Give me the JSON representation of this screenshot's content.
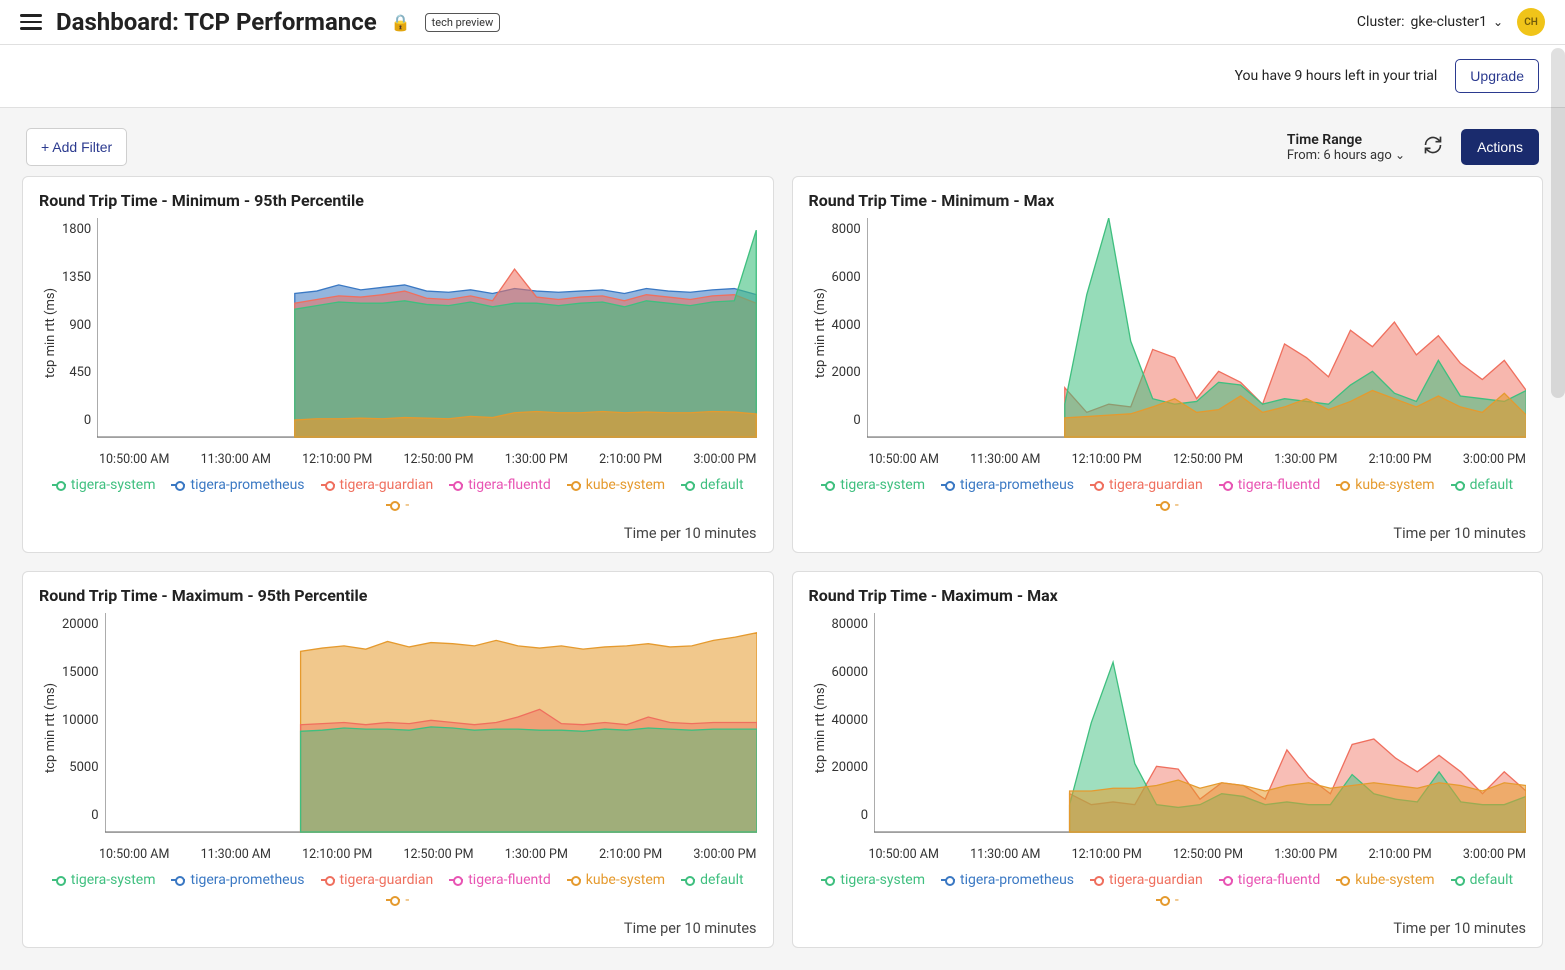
{
  "header": {
    "title": "Dashboard: TCP Performance",
    "tech_preview": "tech preview",
    "cluster_label": "Cluster:",
    "cluster_value": "gke-cluster1",
    "avatar_initials": "CH"
  },
  "trial": {
    "message": "You have 9 hours left in your trial",
    "upgrade_label": "Upgrade"
  },
  "controls": {
    "add_filter_label": "+ Add Filter",
    "time_range_label": "Time Range",
    "time_range_value": "From: 6 hours ago",
    "actions_label": "Actions"
  },
  "series_colors": {
    "tigera-system": "#3fbf7f",
    "tigera-prometheus": "#3a78c3",
    "tigera-guardian": "#ef6f5e",
    "tigera-fluentd": "#e854b3",
    "kube-system": "#e59a2e",
    "default": "#3fbf7f",
    "dash": "#e59a2e"
  },
  "legend_series": [
    {
      "key": "tigera-system",
      "label": "tigera-system"
    },
    {
      "key": "tigera-prometheus",
      "label": "tigera-prometheus"
    },
    {
      "key": "tigera-guardian",
      "label": "tigera-guardian"
    },
    {
      "key": "tigera-fluentd",
      "label": "tigera-fluentd"
    },
    {
      "key": "kube-system",
      "label": "kube-system"
    },
    {
      "key": "default",
      "label": "default"
    },
    {
      "key": "dash",
      "label": "-"
    }
  ],
  "x_ticks": [
    "10:50:00 AM",
    "11:30:00 AM",
    "12:10:00 PM",
    "12:50:00 PM",
    "1:30:00 PM",
    "2:10:00 PM",
    "3:00:00 PM"
  ],
  "panels": [
    {
      "id": "chart1",
      "title": "Round Trip Time - Minimum - 95th Percentile",
      "ylabel": "tcp min rtt (ms)",
      "footer": "Time per 10 minutes",
      "ylim": [
        0,
        1800
      ],
      "yticks": [
        0,
        450,
        900,
        1350,
        1800
      ],
      "type": "area",
      "x_range": [
        0,
        30
      ],
      "data_start_x": 9,
      "series": [
        {
          "key": "tigera-prometheus",
          "fill_opacity": 0.55,
          "values": [
            1180,
            1200,
            1250,
            1210,
            1230,
            1250,
            1200,
            1190,
            1210,
            1180,
            1220,
            1200,
            1190,
            1200,
            1210,
            1180,
            1220,
            1200,
            1190,
            1210,
            1220,
            1170
          ]
        },
        {
          "key": "tigera-guardian",
          "fill_opacity": 0.55,
          "values": [
            1100,
            1130,
            1160,
            1150,
            1170,
            1200,
            1140,
            1130,
            1160,
            1120,
            1380,
            1150,
            1130,
            1150,
            1160,
            1120,
            1170,
            1150,
            1130,
            1160,
            1170,
            1100
          ]
        },
        {
          "key": "tigera-system",
          "fill_opacity": 0.6,
          "values": [
            1050,
            1080,
            1110,
            1100,
            1100,
            1120,
            1090,
            1080,
            1110,
            1070,
            1100,
            1100,
            1080,
            1100,
            1110,
            1070,
            1120,
            1100,
            1080,
            1110,
            1120,
            1700
          ]
        },
        {
          "key": "kube-system",
          "fill_opacity": 0.65,
          "values": [
            140,
            150,
            150,
            155,
            150,
            160,
            155,
            150,
            170,
            160,
            200,
            210,
            200,
            200,
            210,
            200,
            205,
            200,
            200,
            210,
            205,
            190
          ]
        }
      ]
    },
    {
      "id": "chart2",
      "title": "Round Trip Time - Minimum - Max",
      "ylabel": "tcp min rtt (ms)",
      "footer": "Time per 10 minutes",
      "ylim": [
        0,
        8000
      ],
      "yticks": [
        0,
        2000,
        4000,
        6000,
        8000
      ],
      "type": "area",
      "x_range": [
        0,
        30
      ],
      "data_start_x": 9,
      "series": [
        {
          "key": "tigera-guardian",
          "fill_opacity": 0.5,
          "values": [
            1800,
            900,
            1200,
            1100,
            3200,
            2900,
            1400,
            2400,
            2000,
            1200,
            3400,
            2900,
            2200,
            3900,
            3300,
            4200,
            3000,
            3700,
            2700,
            2100,
            2800,
            1700
          ]
        },
        {
          "key": "tigera-system",
          "fill_opacity": 0.55,
          "values": [
            1200,
            5200,
            8000,
            3500,
            1400,
            1200,
            1300,
            2000,
            1900,
            1200,
            1400,
            1300,
            1200,
            1900,
            2400,
            1600,
            1300,
            2800,
            1500,
            1400,
            1300,
            1700
          ]
        },
        {
          "key": "kube-system",
          "fill_opacity": 0.6,
          "values": [
            700,
            750,
            800,
            850,
            1100,
            1400,
            900,
            1000,
            1500,
            900,
            1100,
            1400,
            1000,
            1300,
            1700,
            1400,
            1100,
            1500,
            1100,
            900,
            1600,
            800
          ]
        }
      ]
    },
    {
      "id": "chart3",
      "title": "Round Trip Time - Maximum - 95th Percentile",
      "ylabel": "tcp min rtt (ms)",
      "footer": "Time per 10 minutes",
      "ylim": [
        0,
        20000
      ],
      "yticks": [
        0,
        5000,
        10000,
        15000,
        20000
      ],
      "type": "area",
      "x_range": [
        0,
        30
      ],
      "data_start_x": 9,
      "series": [
        {
          "key": "kube-system",
          "fill_opacity": 0.55,
          "values": [
            16500,
            16800,
            17000,
            16700,
            17400,
            16900,
            17300,
            17200,
            17000,
            17500,
            17000,
            16800,
            17000,
            16700,
            16900,
            17000,
            17200,
            16900,
            17000,
            17500,
            17800,
            18200
          ]
        },
        {
          "key": "tigera-guardian",
          "fill_opacity": 0.45,
          "values": [
            9800,
            9900,
            10000,
            9800,
            10000,
            9900,
            10200,
            10000,
            9800,
            10000,
            10500,
            11200,
            9900,
            9800,
            10000,
            9800,
            10500,
            10000,
            9900,
            10000,
            10000,
            10000
          ]
        },
        {
          "key": "tigera-system",
          "fill_opacity": 0.45,
          "values": [
            9200,
            9300,
            9500,
            9400,
            9400,
            9300,
            9600,
            9500,
            9300,
            9400,
            9400,
            9300,
            9300,
            9200,
            9400,
            9300,
            9500,
            9400,
            9300,
            9400,
            9400,
            9400
          ]
        }
      ]
    },
    {
      "id": "chart4",
      "title": "Round Trip Time - Maximum - Max",
      "ylabel": "tcp min rtt (ms)",
      "footer": "Time per 10 minutes",
      "ylim": [
        0,
        80000
      ],
      "yticks": [
        0,
        20000,
        40000,
        60000,
        80000
      ],
      "type": "area",
      "x_range": [
        0,
        30
      ],
      "data_start_x": 9,
      "series": [
        {
          "key": "tigera-guardian",
          "fill_opacity": 0.45,
          "values": [
            14000,
            10000,
            11000,
            10000,
            24000,
            23000,
            12000,
            18000,
            17000,
            12000,
            30000,
            20000,
            14000,
            32000,
            34000,
            27000,
            22000,
            28000,
            22000,
            14000,
            22000,
            15000
          ]
        },
        {
          "key": "tigera-system",
          "fill_opacity": 0.5,
          "values": [
            10000,
            40000,
            62000,
            25000,
            10000,
            9000,
            10000,
            14000,
            13000,
            10000,
            11000,
            10000,
            10000,
            21000,
            14000,
            12000,
            11000,
            22000,
            11000,
            10000,
            10000,
            13000
          ]
        },
        {
          "key": "kube-system",
          "fill_opacity": 0.55,
          "values": [
            15000,
            15000,
            16000,
            16000,
            17000,
            19000,
            16000,
            18000,
            17000,
            15000,
            17000,
            18000,
            16000,
            17000,
            18000,
            17000,
            16000,
            18000,
            17000,
            15000,
            18000,
            17000
          ]
        }
      ]
    }
  ]
}
